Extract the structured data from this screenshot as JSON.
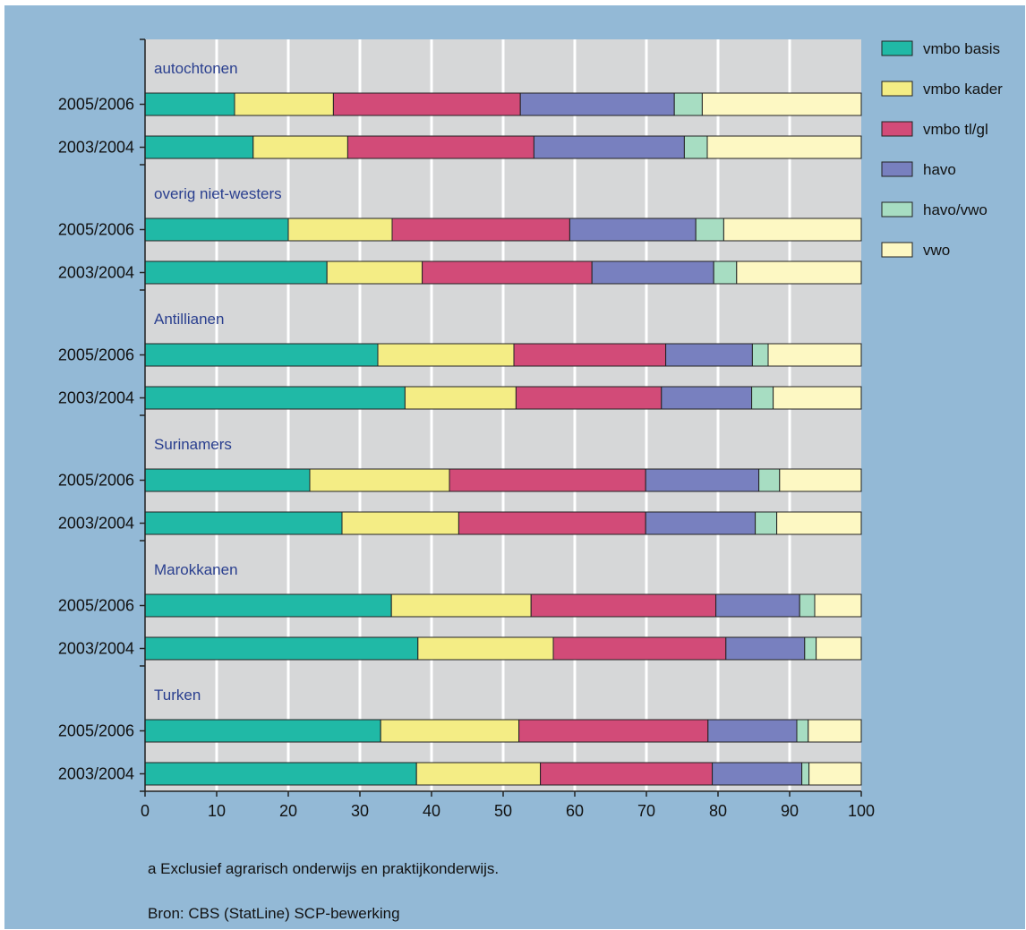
{
  "colors": {
    "panel": "#93b9d6",
    "plot_bg": "#d6d7d8",
    "grid": "#ffffff",
    "group_label": "#2a3f8f",
    "text": "#111111"
  },
  "chart_data": {
    "type": "bar",
    "orientation": "horizontal",
    "stacked": true,
    "title": "",
    "xlabel": "",
    "ylabel": "",
    "xlim": [
      0,
      100
    ],
    "x_ticks": [
      "0",
      "10",
      "20",
      "30",
      "40",
      "50",
      "60",
      "70",
      "80",
      "90",
      "100"
    ],
    "grid": true,
    "legend_position": "right",
    "legend": [
      {
        "name": "vmbo basis",
        "color": "#20b9a6"
      },
      {
        "name": "vmbo kader",
        "color": "#f4ed85"
      },
      {
        "name": "vmbo tl/gl",
        "color": "#d24b78"
      },
      {
        "name": "havo",
        "color": "#7880bf"
      },
      {
        "name": "havo/vwo",
        "color": "#a7ddc2"
      },
      {
        "name": "vwo",
        "color": "#fdf8c3"
      }
    ],
    "groups": [
      {
        "name": "autochtonen",
        "bars": [
          {
            "label": "2005/2006",
            "values": [
              12.5,
              13.8,
              26.1,
              21.5,
              3.9,
              22.2
            ]
          },
          {
            "label": "2003/2004",
            "values": [
              15.1,
              13.2,
              26.0,
              21.0,
              3.2,
              21.5
            ]
          }
        ]
      },
      {
        "name": "overig niet-westers",
        "bars": [
          {
            "label": "2005/2006",
            "values": [
              20.0,
              14.5,
              24.8,
              17.6,
              3.9,
              19.2
            ]
          },
          {
            "label": "2003/2004",
            "values": [
              25.4,
              13.3,
              23.7,
              17.0,
              3.2,
              17.4
            ]
          }
        ]
      },
      {
        "name": "Antillianen",
        "bars": [
          {
            "label": "2005/2006",
            "values": [
              32.5,
              19.0,
              21.2,
              12.1,
              2.2,
              13.0
            ]
          },
          {
            "label": "2003/2004",
            "values": [
              36.3,
              15.5,
              20.3,
              12.6,
              3.0,
              12.3
            ]
          }
        ]
      },
      {
        "name": "Surinamers",
        "bars": [
          {
            "label": "2005/2006",
            "values": [
              23.0,
              19.5,
              27.4,
              15.8,
              2.9,
              11.4
            ]
          },
          {
            "label": "2003/2004",
            "values": [
              27.5,
              16.3,
              26.1,
              15.3,
              3.0,
              11.8
            ]
          }
        ]
      },
      {
        "name": "Marokkanen",
        "bars": [
          {
            "label": "2005/2006",
            "values": [
              34.4,
              19.5,
              25.8,
              11.7,
              2.1,
              6.5
            ]
          },
          {
            "label": "2003/2004",
            "values": [
              38.1,
              18.9,
              24.1,
              11.0,
              1.6,
              6.3
            ]
          }
        ]
      },
      {
        "name": "Turken",
        "bars": [
          {
            "label": "2005/2006",
            "values": [
              32.9,
              19.3,
              26.4,
              12.4,
              1.6,
              7.4
            ]
          },
          {
            "label": "2003/2004",
            "values": [
              37.9,
              17.3,
              24.0,
              12.5,
              1.0,
              7.3
            ]
          }
        ]
      }
    ]
  },
  "footnotes": {
    "note": "a   Exclusief agrarisch onderwijs en praktijkonderwijs.",
    "source": "Bron: CBS (StatLine) SCP-bewerking"
  }
}
